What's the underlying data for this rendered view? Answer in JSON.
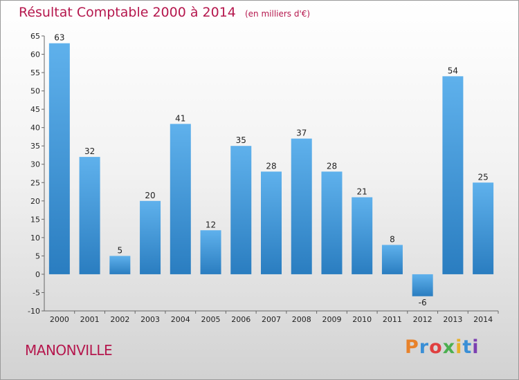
{
  "header": {
    "title": "Résultat Comptable 2000 à 2014",
    "subtitle": "(en milliers d'€)"
  },
  "footer": {
    "town": "MANONVILLE",
    "brand": "Proxiti",
    "brand_colors": [
      "#e8822a",
      "#3a8fd6",
      "#e04040",
      "#4caf50",
      "#e8b02a",
      "#3a8fd6",
      "#7b3fb0"
    ]
  },
  "colors": {
    "title": "#b5174d",
    "bar_light": "#5fb1ec",
    "bar_dark": "#2a7dc0"
  },
  "chart_data": {
    "type": "bar",
    "title": "Résultat Comptable 2000 à 2014",
    "xlabel": "",
    "ylabel": "",
    "grid": false,
    "ylim": [
      -10,
      65
    ],
    "yticks": [
      -10,
      -5,
      0,
      5,
      10,
      15,
      20,
      25,
      30,
      35,
      40,
      45,
      50,
      55,
      60,
      65
    ],
    "categories": [
      "2000",
      "2001",
      "2002",
      "2003",
      "2004",
      "2005",
      "2006",
      "2007",
      "2008",
      "2009",
      "2010",
      "2011",
      "2012",
      "2013",
      "2014"
    ],
    "values": [
      63,
      32,
      5,
      20,
      41,
      12,
      35,
      28,
      37,
      28,
      21,
      8,
      -6,
      54,
      25
    ]
  }
}
